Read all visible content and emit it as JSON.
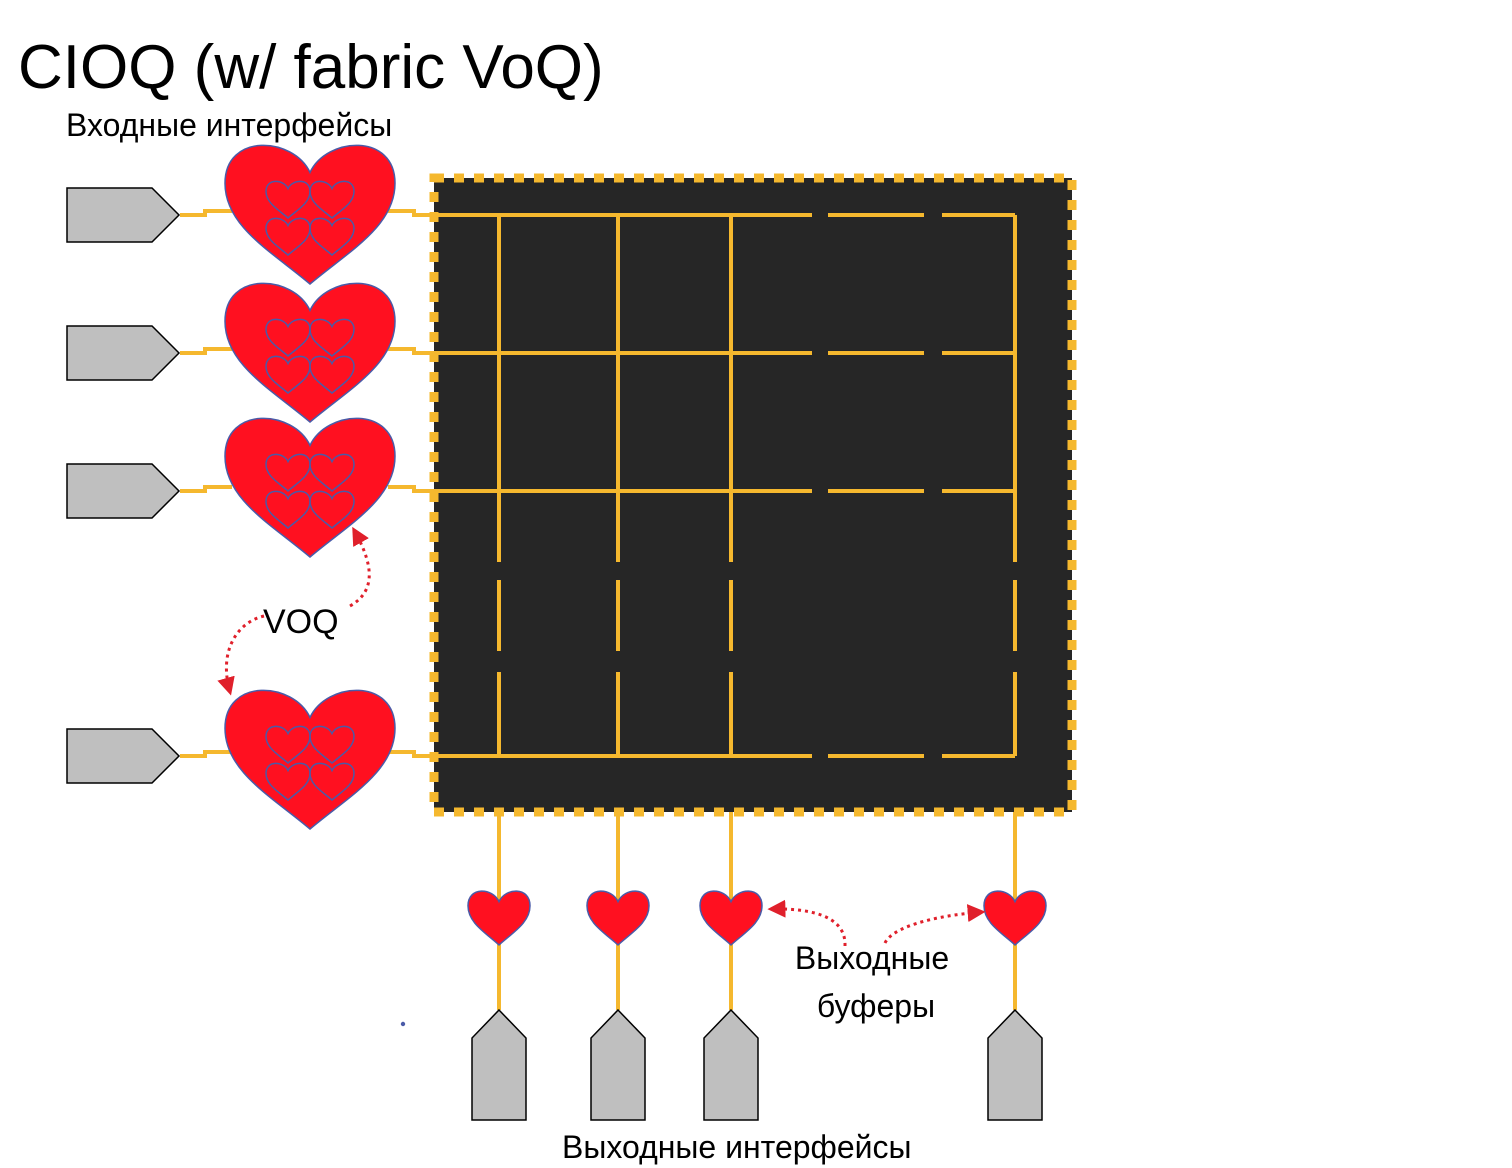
{
  "title": "CIOQ (w/ fabric VoQ)",
  "labels": {
    "input_interfaces": "Входные интерфейсы",
    "voq": "VOQ",
    "output_buffers_line1": "Выходные",
    "output_buffers_line2": "буферы",
    "output_interfaces": "Выходные интерфейсы"
  },
  "colors": {
    "fabric_fill": "#262626",
    "fabric_border": "#F5B82E",
    "wire": "#F5B82E",
    "heart_fill": "#FF1020",
    "heart_stroke": "#4A5BA8",
    "port_fill": "#BFBFBF",
    "port_stroke": "#000000",
    "annotation_arrow": "#E0202B"
  },
  "icons": {
    "input_port": "pentagon-arrow-right",
    "output_port": "pentagon-arrow-up",
    "voq_buffer": "heart-with-four-small-hearts",
    "output_buffer": "heart"
  }
}
